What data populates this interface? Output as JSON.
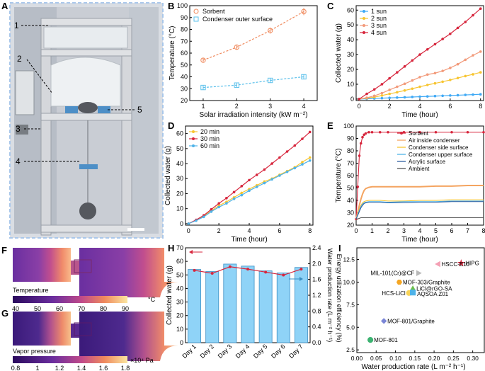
{
  "colors": {
    "orange": "#f08a5d",
    "blue_light": "#5bc0eb",
    "sun1": "#3fa9f5",
    "sun2": "#f7c531",
    "sun3": "#f29a7a",
    "sun4": "#d7263d",
    "t20": "#f7c531",
    "t30": "#d7263d",
    "t60": "#4fb3e8",
    "bar": "#8fd3f7",
    "bar_edge": "#3a8fc4",
    "eff_line": "#d7263d"
  },
  "panel_labels": {
    "a": "A",
    "b": "B",
    "c": "C",
    "d": "D",
    "e": "E",
    "f": "F",
    "g": "G",
    "h": "H",
    "i": "I"
  },
  "photo": {
    "callouts": [
      "1",
      "2",
      "3",
      "4",
      "5"
    ],
    "description_icon": "device-photo"
  },
  "maps": {
    "f_label": "Temperature",
    "f_unit": "°C",
    "f_ticks": [
      "40",
      "50",
      "60",
      "70",
      "80",
      "90"
    ],
    "g_label": "Vapor pressure",
    "g_unit": "×10⁴ Pa",
    "g_ticks": [
      "0.8",
      "1",
      "1.2",
      "1.4",
      "1.6",
      "1.8"
    ]
  },
  "chart_data": [
    {
      "panel": "B",
      "type": "scatter",
      "xlabel": "Solar irradiation intensity (kW m⁻²)",
      "ylabel": "Temperature (°C)",
      "xlim": [
        0.6,
        4.4
      ],
      "ylim": [
        20,
        100
      ],
      "xticks": [
        "1",
        "2",
        "3",
        "4"
      ],
      "yticks": [
        "20",
        "30",
        "40",
        "50",
        "60",
        "70",
        "80",
        "90",
        "100"
      ],
      "x": [
        1,
        2,
        3,
        4
      ],
      "series": [
        {
          "name": "Sorbent",
          "values": [
            54,
            65,
            79,
            95
          ],
          "errors": [
            1.5,
            2,
            2.5,
            3
          ],
          "marker": "circle"
        },
        {
          "name": "Condenser outer surface",
          "values": [
            31,
            33,
            37,
            40
          ],
          "errors": [
            2,
            2,
            2,
            2
          ],
          "marker": "square"
        }
      ],
      "legend": "top-left",
      "fit": "dashed"
    },
    {
      "panel": "C",
      "type": "line",
      "xlabel": "Time (hour)",
      "ylabel": "Collected water (g)",
      "xlim": [
        -0.2,
        8.2
      ],
      "ylim": [
        -1,
        63
      ],
      "xticks": [
        "0",
        "2",
        "4",
        "6",
        "8"
      ],
      "yticks": [
        "0",
        "10",
        "20",
        "30",
        "40",
        "50",
        "60"
      ],
      "x": [
        0,
        0.5,
        1,
        1.5,
        2,
        2.5,
        3,
        3.5,
        4,
        4.5,
        5,
        5.5,
        6,
        6.5,
        7,
        7.5,
        8
      ],
      "series": [
        {
          "name": "1 sun",
          "values": [
            0,
            0.2,
            0.4,
            0.6,
            0.8,
            1.0,
            1.2,
            1.4,
            1.6,
            1.8,
            2.0,
            2.2,
            2.4,
            2.6,
            2.8,
            3.0,
            3.2
          ]
        },
        {
          "name": "2 sun",
          "values": [
            0,
            0.6,
            1.3,
            2.4,
            3.5,
            4.6,
            5.8,
            7.0,
            8.3,
            9.5,
            10.6,
            11.7,
            12.9,
            14.2,
            15.5,
            16.7,
            18
          ]
        },
        {
          "name": "3 sun",
          "values": [
            0,
            0.9,
            2.2,
            4.0,
            6.2,
            8.3,
            10.3,
            12.5,
            14.8,
            16.5,
            17.5,
            19,
            21,
            23.5,
            26.5,
            29.5,
            32
          ]
        },
        {
          "name": "4 sun",
          "values": [
            0,
            3.5,
            6.5,
            10,
            14,
            18,
            22,
            26,
            30,
            33.5,
            37,
            40.5,
            44,
            48,
            52,
            56.5,
            61
          ]
        }
      ],
      "legend": "top-left"
    },
    {
      "panel": "D",
      "type": "line",
      "xlabel": "Time (hour)",
      "ylabel": "Collected water (g)",
      "xlim": [
        -0.2,
        8.2
      ],
      "ylim": [
        -1,
        65
      ],
      "xticks": [
        "0",
        "2",
        "4",
        "6",
        "8"
      ],
      "yticks": [
        "0",
        "10",
        "20",
        "30",
        "40",
        "50",
        "60"
      ],
      "x": [
        0,
        0.5,
        1,
        1.5,
        2,
        2.5,
        3,
        3.5,
        4,
        4.5,
        5,
        5.5,
        6,
        6.5,
        7,
        7.5,
        8
      ],
      "series": [
        {
          "name": "20 min",
          "values": [
            0,
            2.2,
            5,
            8.5,
            12,
            14.5,
            17.5,
            20.5,
            23,
            25.5,
            28,
            30,
            32.5,
            35,
            37.5,
            41,
            44
          ]
        },
        {
          "name": "30 min",
          "values": [
            0,
            2.5,
            5.5,
            9.5,
            13.5,
            17,
            21,
            25,
            29,
            32.5,
            36,
            40,
            44,
            48,
            52,
            56.5,
            61
          ]
        },
        {
          "name": "60 min",
          "values": [
            0,
            2,
            4.5,
            8,
            11,
            13.5,
            16.5,
            19,
            22,
            24.5,
            27,
            29.5,
            32,
            34.5,
            37,
            39.5,
            42
          ]
        }
      ],
      "legend": "top-left"
    },
    {
      "panel": "E",
      "type": "line",
      "xlabel": "Time (hour)",
      "ylabel": "Temperature (°C)",
      "xlim": [
        0,
        8
      ],
      "ylim": [
        20,
        100
      ],
      "xticks": [
        "0",
        "1",
        "2",
        "3",
        "4",
        "5",
        "6",
        "7",
        "8"
      ],
      "yticks": [
        "20",
        "30",
        "40",
        "50",
        "60",
        "70",
        "80",
        "90",
        "100"
      ],
      "x": [
        0,
        0.1,
        0.2,
        0.3,
        0.4,
        0.5,
        0.6,
        0.8,
        1,
        1.5,
        2,
        3,
        4,
        5,
        6,
        7,
        8
      ],
      "series": [
        {
          "name": "Sorbent",
          "values": [
            25,
            51,
            76,
            86,
            91,
            93,
            94,
            95,
            95,
            95,
            95,
            95,
            95,
            95,
            95,
            95,
            95
          ]
        },
        {
          "name": "Air inside condenser",
          "values": [
            25,
            30,
            36,
            41,
            45,
            48,
            49.5,
            50.5,
            51,
            51,
            51,
            51,
            51,
            51.5,
            51.5,
            52,
            52
          ]
        },
        {
          "name": "Condenser side surface",
          "values": [
            25,
            29,
            33,
            36,
            38,
            39,
            39.5,
            40,
            40,
            40,
            39.5,
            39.5,
            40,
            40,
            40.5,
            40.5,
            40.5
          ]
        },
        {
          "name": "Condenser upper surface",
          "values": [
            25,
            28.5,
            32,
            35,
            37,
            38,
            38.5,
            39,
            39,
            39,
            38.5,
            39,
            39,
            39,
            39.5,
            39.5,
            39.5
          ]
        },
        {
          "name": "Acrylic surface",
          "values": [
            25,
            28,
            31,
            34,
            36,
            37.5,
            38,
            38.5,
            38.5,
            38.5,
            38,
            38,
            38.5,
            38.5,
            39,
            39,
            39
          ]
        },
        {
          "name": "Ambient",
          "values": [
            25,
            25,
            25.5,
            26,
            26,
            26,
            26,
            26,
            26,
            26,
            26,
            26,
            26,
            26,
            26,
            26,
            26
          ]
        }
      ],
      "colors": [
        "#d7263d",
        "#f4a460",
        "#f7c531",
        "#4fb3e8",
        "#2f5fa0",
        "#555555"
      ],
      "legend": "right"
    },
    {
      "panel": "H",
      "type": "bar",
      "categories": [
        "Day 1",
        "Day 2",
        "Day 3",
        "Day 4",
        "Day 5",
        "Day 6",
        "Day 7"
      ],
      "ylabel": "Collected water (g)",
      "y2label": "Water production rate (L m⁻² h⁻¹)",
      "y3label": "Energy utilization efficiency (%)",
      "ylim": [
        0,
        70
      ],
      "y2lim": [
        0,
        2.4
      ],
      "yticks": [
        "0",
        "10",
        "20",
        "30",
        "40",
        "50",
        "60",
        "70"
      ],
      "y2ticks": [
        "0.0",
        "0.4",
        "0.8",
        "1.2",
        "1.6",
        "2.0",
        "2.4"
      ],
      "values": [
        54,
        52.5,
        58,
        56.5,
        53,
        51.5,
        55.5
      ],
      "efficiency": [
        61,
        58.5,
        64,
        62,
        59.5,
        57,
        62
      ]
    },
    {
      "panel": "I",
      "type": "scatter",
      "xlabel": "Water production rate (L m⁻² h⁻¹)",
      "ylabel": "Energy utilization efficiency (%)",
      "xlim": [
        0,
        0.33
      ],
      "ylim": [
        2.2,
        13.8
      ],
      "xticks": [
        "0.00",
        "0.05",
        "0.10",
        "0.15",
        "0.20",
        "0.25",
        "0.30"
      ],
      "yticks": [
        "2.5",
        "5.0",
        "7.5",
        "10.0",
        "12.5"
      ],
      "points": [
        {
          "name": "HIPG",
          "x": 0.27,
          "y": 12.1,
          "marker": "star",
          "color": "#d7263d"
        },
        {
          "name": "HSCC-E10",
          "x": 0.21,
          "y": 12.0,
          "marker": "triangle-left",
          "color": "#f4a0b4"
        },
        {
          "name": "MIL-101(Cr)@CF",
          "x": 0.16,
          "y": 11.0,
          "marker": "triangle-right",
          "color": "#b9b9b9"
        },
        {
          "name": "MOF-303/Graphite",
          "x": 0.11,
          "y": 10.0,
          "marker": "hexagon",
          "color": "#f5a623"
        },
        {
          "name": "LiCl@rGO-SA",
          "x": 0.145,
          "y": 9.3,
          "marker": "triangle-up",
          "color": "#6cc04a"
        },
        {
          "name": "HCS-LiCl",
          "x": 0.135,
          "y": 8.8,
          "marker": "circle",
          "color": "#f7d358"
        },
        {
          "name": "AQSOA Z01",
          "x": 0.145,
          "y": 8.85,
          "marker": "square",
          "color": "#4fb3e8"
        },
        {
          "name": "MOF-801/Graphite",
          "x": 0.07,
          "y": 5.7,
          "marker": "diamond",
          "color": "#7b86d6"
        },
        {
          "name": "MOF-801",
          "x": 0.035,
          "y": 3.6,
          "marker": "circle",
          "color": "#3cb371"
        }
      ]
    }
  ]
}
